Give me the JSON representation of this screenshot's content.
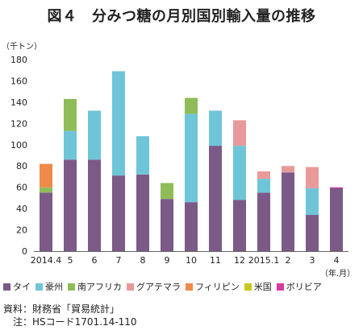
{
  "title": "図４　分みつ糖の月別国別輸入量の推移",
  "source": {
    "line1": "資料：財務省「貿易統計」",
    "line2": "　注：HSコード1701.14-110"
  },
  "chart_data": {
    "type": "bar",
    "stacked": true,
    "title": "図４　分みつ糖の月別国別輸入量の推移",
    "ylabel": "（千トン）",
    "xlabel": "（年.月）",
    "ylim": [
      0,
      180
    ],
    "yticks": [
      0,
      20,
      40,
      60,
      80,
      100,
      120,
      140,
      160,
      180
    ],
    "grid": false,
    "legend_position": "bottom",
    "categories": [
      "2014.4",
      "5",
      "6",
      "7",
      "8",
      "9",
      "10",
      "11",
      "12",
      "2015.1",
      "2",
      "3",
      "4"
    ],
    "series": [
      {
        "name": "タイ",
        "color": "#7b5a88",
        "values": [
          55,
          86,
          86,
          71,
          72,
          49,
          46,
          99,
          48,
          55,
          74,
          34,
          59
        ]
      },
      {
        "name": "豪州",
        "color": "#6fc5d8",
        "values": [
          0,
          27,
          46,
          98,
          36,
          0,
          83,
          33,
          51,
          13,
          0,
          25,
          0
        ]
      },
      {
        "name": "南アフリカ",
        "color": "#8fbc58",
        "values": [
          5,
          30,
          0,
          0,
          0,
          15,
          15,
          0,
          0,
          0,
          0,
          0,
          0
        ]
      },
      {
        "name": "グアテマラ",
        "color": "#e89a9a",
        "values": [
          0,
          0,
          0,
          0,
          0,
          0,
          0,
          0,
          24,
          7,
          6,
          20,
          0
        ]
      },
      {
        "name": "フィリピン",
        "color": "#ee8a4a",
        "values": [
          22,
          0,
          0,
          0,
          0,
          0,
          0,
          0,
          0,
          0,
          0,
          0,
          0
        ]
      },
      {
        "name": "米国",
        "color": "#c8c820",
        "values": [
          0,
          0,
          0,
          0,
          0,
          0,
          0,
          0,
          0,
          0,
          0,
          0,
          0
        ]
      },
      {
        "name": "ボリビア",
        "color": "#d63ca0",
        "values": [
          0,
          0,
          0,
          0,
          0,
          0,
          0,
          0,
          0,
          0,
          0,
          0,
          1
        ]
      }
    ]
  }
}
